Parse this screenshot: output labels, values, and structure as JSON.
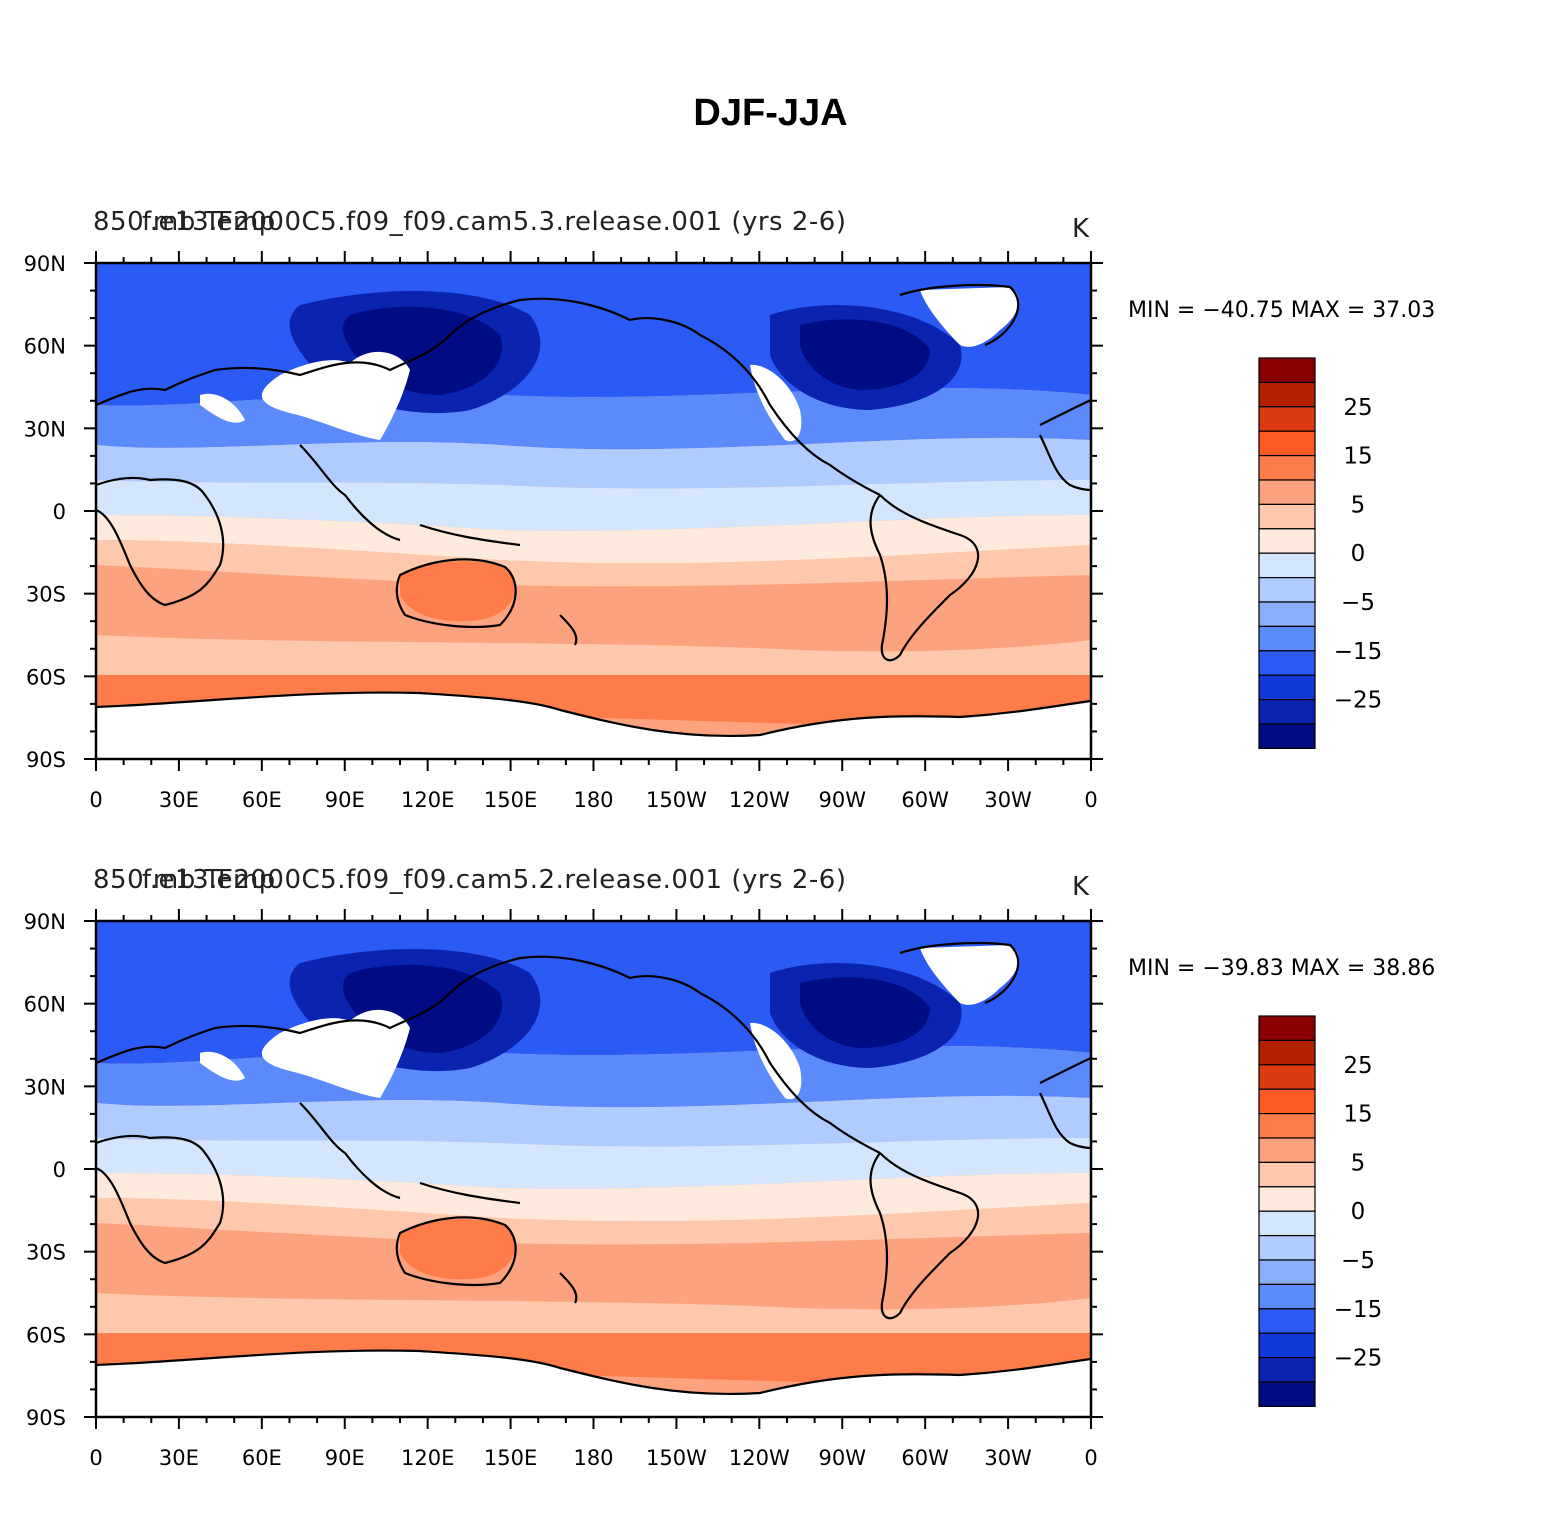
{
  "title": "DJF-JJA",
  "panels": [
    {
      "left_string": "850 mb Temp",
      "center_string": "f.e13.F2000C5.f09_f09.cam5.3.release.001 (yrs 2-6)",
      "right_string": "K",
      "min_max": "MIN = −40.75  MAX =   37.03"
    },
    {
      "left_string": "850 mb Temp",
      "center_string": "f.e13.F2000C5.f09_f09.cam5.2.release.001 (yrs 2-6)",
      "right_string": "K",
      "min_max": "MIN = −39.83  MAX =   38.86"
    }
  ],
  "lat_labels": [
    "90N",
    "60N",
    "30N",
    "0",
    "30S",
    "60S",
    "90S"
  ],
  "lon_labels": [
    "0",
    "30E",
    "60E",
    "90E",
    "120E",
    "150E",
    "180",
    "150W",
    "120W",
    "90W",
    "60W",
    "30W",
    "0"
  ],
  "colorbar": {
    "labels": [
      "25",
      "15",
      "5",
      "0",
      "−5",
      "−15",
      "−25"
    ],
    "colors": [
      "#8b0000",
      "#b22000",
      "#dc3a10",
      "#fb5a22",
      "#fd7c4a",
      "#fda27e",
      "#fdc8ab",
      "#feeadc",
      "#d4e6fd",
      "#b0cbfd",
      "#88aefc",
      "#5b8bfb",
      "#2b5bf4",
      "#1238d8",
      "#0a24b0",
      "#000b84"
    ]
  },
  "chart_data": {
    "type": "heatmap",
    "title": "DJF-JJA",
    "variable": "850 mb Temp",
    "units": "K",
    "contour_levels": [
      -35,
      -30,
      -25,
      -20,
      -15,
      -10,
      -5,
      0,
      5,
      10,
      15,
      20,
      25,
      30,
      35
    ],
    "xlim": [
      0,
      360
    ],
    "ylim": [
      -90,
      90
    ],
    "maps": [
      {
        "case": "f.e13.F2000C5.f09_f09.cam5.3.release.001 (yrs 2-6)",
        "min": -40.75,
        "max": 37.03
      },
      {
        "case": "f.e13.F2000C5.f09_f09.cam5.2.release.001 (yrs 2-6)",
        "min": -39.83,
        "max": 38.86
      }
    ]
  }
}
